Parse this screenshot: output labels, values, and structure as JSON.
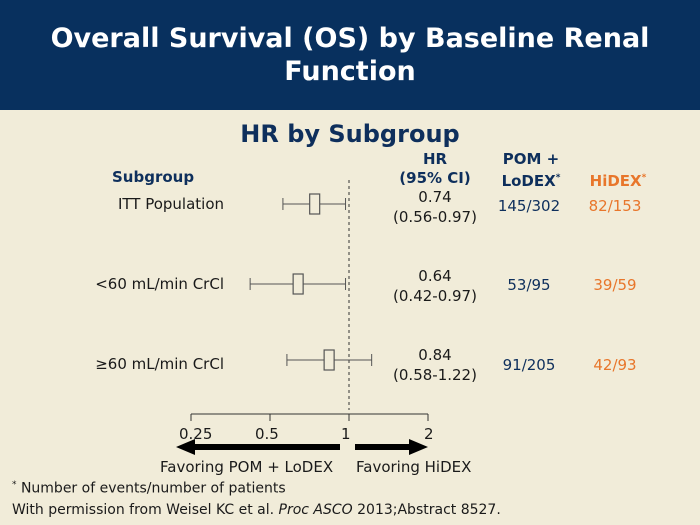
{
  "header": {
    "title": "Overall Survival (OS) by Baseline Renal Function"
  },
  "subtitle": "HR by Subgroup",
  "columns": {
    "subgroup": "Subgroup",
    "hr_line1": "HR",
    "hr_line2": "(95% CI)",
    "pom_line1": "POM +",
    "pom_line2": "LoDEX",
    "hidex": "HiDEX",
    "asterisk": "*"
  },
  "chart_data": {
    "type": "forest",
    "x_scale": "log",
    "reference_line": 1,
    "xlim": [
      0.25,
      2
    ],
    "x_ticks": [
      0.25,
      0.5,
      1,
      2
    ],
    "x_tick_labels": [
      "0.25",
      "0.5",
      "1",
      "2"
    ],
    "arrow_left_label": "Favoring POM + LoDEX",
    "arrow_right_label": "Favoring HiDEX",
    "rows": [
      {
        "label": "ITT Population",
        "hr": 0.74,
        "ci_low": 0.56,
        "ci_high": 0.97,
        "hr_text": "0.74",
        "ci_text": "(0.56-0.97)",
        "pom_lodex": "145/302",
        "hidex": "82/153"
      },
      {
        "label": "<60 mL/min CrCl",
        "hr": 0.64,
        "ci_low": 0.42,
        "ci_high": 0.97,
        "hr_text": "0.64",
        "ci_text": "(0.42-0.97)",
        "pom_lodex": "53/95",
        "hidex": "39/59"
      },
      {
        "label": "≥60 mL/min CrCl",
        "hr": 0.84,
        "ci_low": 0.58,
        "ci_high": 1.22,
        "hr_text": "0.84",
        "ci_text": "(0.58-1.22)",
        "pom_lodex": "91/205",
        "hidex": "42/93"
      }
    ]
  },
  "footnotes": {
    "asterisk": "*",
    "note1": "Number of events/number of patients",
    "note2_a": "With permission from Weisel KC et al. ",
    "note2_journal": "Proc ASCO",
    "note2_b": " 2013;Abstract 8527."
  },
  "colors": {
    "navy": "#0e2f5c",
    "header_bg": "#08305e",
    "orange": "#e8762b",
    "background": "#f1ecd9"
  }
}
